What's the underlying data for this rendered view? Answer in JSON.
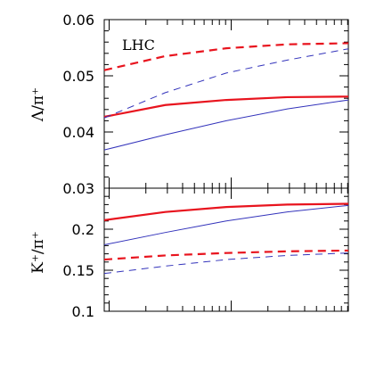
{
  "chart_data": [
    {
      "type": "line",
      "annotation": "LHC",
      "ylabel": "Λ/π⁺",
      "ylim": [
        0.03,
        0.06
      ],
      "yticks": [
        "0.03",
        "0.04",
        "0.05",
        "0.06"
      ],
      "x_scale": "log",
      "x_tick_labels_shown": false,
      "series": [
        {
          "style": "thick-solid",
          "color": "#e8141e",
          "x": [
            0,
            0.25,
            0.5,
            0.75,
            1
          ],
          "values": [
            0.0427,
            0.0448,
            0.0457,
            0.0462,
            0.0463
          ]
        },
        {
          "style": "thick-dashed",
          "color": "#e8141e",
          "x": [
            0,
            0.25,
            0.5,
            0.75,
            1
          ],
          "values": [
            0.051,
            0.0535,
            0.0549,
            0.0556,
            0.0558
          ]
        },
        {
          "style": "thin-solid",
          "color": "#3333bb",
          "x": [
            0,
            0.25,
            0.5,
            0.75,
            1
          ],
          "values": [
            0.0368,
            0.0395,
            0.042,
            0.0441,
            0.0457
          ]
        },
        {
          "style": "thin-dashed",
          "color": "#3333bb",
          "x": [
            0,
            0.25,
            0.5,
            0.75,
            1
          ],
          "values": [
            0.0425,
            0.047,
            0.0505,
            0.0528,
            0.0548
          ]
        }
      ]
    },
    {
      "type": "line",
      "ylabel": "K⁺/π⁺",
      "ylim": [
        0.1,
        0.25
      ],
      "yticks": [
        "0.1",
        "0.15",
        "0.2"
      ],
      "x_scale": "log",
      "x_tick_labels_shown": false,
      "series": [
        {
          "style": "thick-solid",
          "color": "#e8141e",
          "x": [
            0,
            0.25,
            0.5,
            0.75,
            1
          ],
          "values": [
            0.211,
            0.221,
            0.227,
            0.23,
            0.231
          ]
        },
        {
          "style": "thick-dashed",
          "color": "#e8141e",
          "x": [
            0,
            0.25,
            0.5,
            0.75,
            1
          ],
          "values": [
            0.163,
            0.168,
            0.171,
            0.173,
            0.174
          ]
        },
        {
          "style": "thin-solid",
          "color": "#3333bb",
          "x": [
            0,
            0.25,
            0.5,
            0.75,
            1
          ],
          "values": [
            0.181,
            0.196,
            0.21,
            0.221,
            0.229
          ]
        },
        {
          "style": "thin-dashed",
          "color": "#3333bb",
          "x": [
            0,
            0.25,
            0.5,
            0.75,
            1
          ],
          "values": [
            0.146,
            0.155,
            0.163,
            0.168,
            0.171
          ]
        }
      ]
    }
  ]
}
